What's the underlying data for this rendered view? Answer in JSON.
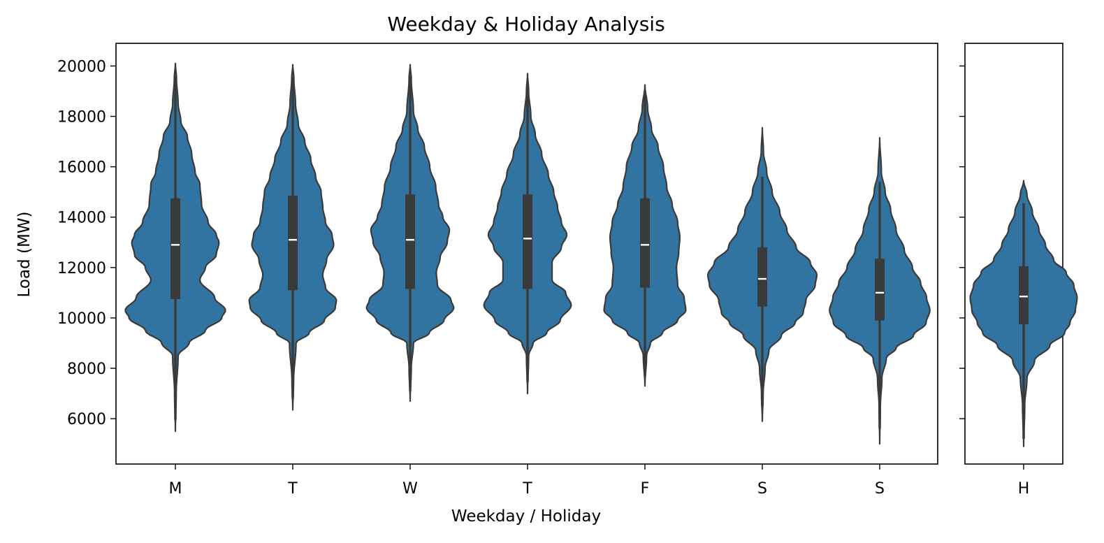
{
  "chart_data": {
    "type": "violin",
    "title": "Weekday & Holiday Analysis",
    "xlabel": "Weekday / Holiday",
    "ylabel": "Load (MW)",
    "ylim": [
      4200,
      20900
    ],
    "yticks": [
      6000,
      8000,
      10000,
      12000,
      14000,
      16000,
      18000,
      20000
    ],
    "grid": false,
    "colors": {
      "fill": "#3274a1",
      "edge": "#3a3a3a",
      "median": "#ffffff"
    },
    "panels": [
      {
        "categories": [
          "M",
          "T",
          "W",
          "T",
          "F",
          "S",
          "S"
        ],
        "violins": [
          {
            "label": "M",
            "min": 5500,
            "max": 20100,
            "q1": 10750,
            "median": 12900,
            "q3": 14750,
            "whisker_low": 5950,
            "whisker_high": 19600,
            "profile": [
              [
                5500,
                0.0
              ],
              [
                7000,
                0.015
              ],
              [
                8500,
                0.05
              ],
              [
                9000,
                0.25
              ],
              [
                9500,
                0.55
              ],
              [
                10000,
                0.85
              ],
              [
                10300,
                0.92
              ],
              [
                10800,
                0.72
              ],
              [
                11500,
                0.45
              ],
              [
                12000,
                0.55
              ],
              [
                12500,
                0.75
              ],
              [
                13000,
                0.8
              ],
              [
                13300,
                0.75
              ],
              [
                13800,
                0.6
              ],
              [
                14500,
                0.48
              ],
              [
                15300,
                0.45
              ],
              [
                15800,
                0.36
              ],
              [
                16500,
                0.3
              ],
              [
                17200,
                0.22
              ],
              [
                17800,
                0.1
              ],
              [
                18500,
                0.05
              ],
              [
                19500,
                0.02
              ],
              [
                20100,
                0.0
              ]
            ]
          },
          {
            "label": "T",
            "min": 6350,
            "max": 20050,
            "q1": 11100,
            "median": 13100,
            "q3": 14850,
            "whisker_low": 6800,
            "whisker_high": 19550,
            "profile": [
              [
                6350,
                0.0
              ],
              [
                7500,
                0.015
              ],
              [
                9000,
                0.06
              ],
              [
                9400,
                0.3
              ],
              [
                9900,
                0.58
              ],
              [
                10400,
                0.78
              ],
              [
                10700,
                0.8
              ],
              [
                11200,
                0.6
              ],
              [
                11700,
                0.55
              ],
              [
                12300,
                0.62
              ],
              [
                12900,
                0.75
              ],
              [
                13300,
                0.72
              ],
              [
                13800,
                0.6
              ],
              [
                14400,
                0.55
              ],
              [
                15000,
                0.52
              ],
              [
                15600,
                0.42
              ],
              [
                16300,
                0.33
              ],
              [
                17000,
                0.22
              ],
              [
                17700,
                0.1
              ],
              [
                18500,
                0.05
              ],
              [
                19500,
                0.02
              ],
              [
                20050,
                0.0
              ]
            ]
          },
          {
            "label": "W",
            "min": 6700,
            "max": 20050,
            "q1": 11150,
            "median": 13100,
            "q3": 14900,
            "whisker_low": 7100,
            "whisker_high": 19600,
            "profile": [
              [
                6700,
                0.0
              ],
              [
                8000,
                0.02
              ],
              [
                9000,
                0.06
              ],
              [
                9400,
                0.35
              ],
              [
                9900,
                0.62
              ],
              [
                10400,
                0.8
              ],
              [
                10700,
                0.75
              ],
              [
                11300,
                0.5
              ],
              [
                11800,
                0.48
              ],
              [
                12400,
                0.55
              ],
              [
                13000,
                0.68
              ],
              [
                13500,
                0.72
              ],
              [
                14000,
                0.6
              ],
              [
                14500,
                0.52
              ],
              [
                15200,
                0.47
              ],
              [
                16000,
                0.36
              ],
              [
                16800,
                0.26
              ],
              [
                17500,
                0.14
              ],
              [
                18200,
                0.06
              ],
              [
                19500,
                0.02
              ],
              [
                20050,
                0.0
              ]
            ]
          },
          {
            "label": "T",
            "min": 7000,
            "max": 19700,
            "q1": 11150,
            "median": 13150,
            "q3": 14900,
            "whisker_low": 7450,
            "whisker_high": 19250,
            "profile": [
              [
                7000,
                0.0
              ],
              [
                8500,
                0.02
              ],
              [
                9000,
                0.1
              ],
              [
                9400,
                0.35
              ],
              [
                9900,
                0.6
              ],
              [
                10500,
                0.8
              ],
              [
                11000,
                0.7
              ],
              [
                11500,
                0.45
              ],
              [
                12200,
                0.45
              ],
              [
                12800,
                0.62
              ],
              [
                13300,
                0.72
              ],
              [
                13800,
                0.62
              ],
              [
                14400,
                0.55
              ],
              [
                15000,
                0.48
              ],
              [
                15700,
                0.38
              ],
              [
                16500,
                0.26
              ],
              [
                17300,
                0.14
              ],
              [
                18000,
                0.06
              ],
              [
                19000,
                0.02
              ],
              [
                19700,
                0.0
              ]
            ]
          },
          {
            "label": "F",
            "min": 7300,
            "max": 19250,
            "q1": 11200,
            "median": 12900,
            "q3": 14750,
            "whisker_low": 7700,
            "whisker_high": 18850,
            "profile": [
              [
                7300,
                0.0
              ],
              [
                8500,
                0.03
              ],
              [
                9000,
                0.1
              ],
              [
                9400,
                0.32
              ],
              [
                9900,
                0.6
              ],
              [
                10300,
                0.75
              ],
              [
                10800,
                0.72
              ],
              [
                11300,
                0.6
              ],
              [
                12000,
                0.58
              ],
              [
                12600,
                0.62
              ],
              [
                13200,
                0.64
              ],
              [
                13800,
                0.6
              ],
              [
                14500,
                0.5
              ],
              [
                15200,
                0.4
              ],
              [
                16000,
                0.34
              ],
              [
                16800,
                0.24
              ],
              [
                17500,
                0.12
              ],
              [
                18300,
                0.05
              ],
              [
                19250,
                0.0
              ]
            ]
          },
          {
            "label": "S",
            "min": 5900,
            "max": 17550,
            "q1": 10450,
            "median": 11550,
            "q3": 12800,
            "whisker_low": 6500,
            "whisker_high": 15600,
            "profile": [
              [
                5900,
                0.0
              ],
              [
                7000,
                0.015
              ],
              [
                8000,
                0.05
              ],
              [
                8700,
                0.12
              ],
              [
                9300,
                0.35
              ],
              [
                9800,
                0.6
              ],
              [
                10200,
                0.75
              ],
              [
                10700,
                0.8
              ],
              [
                11300,
                0.97
              ],
              [
                11700,
                1.0
              ],
              [
                12200,
                0.88
              ],
              [
                12800,
                0.62
              ],
              [
                13500,
                0.45
              ],
              [
                14200,
                0.32
              ],
              [
                15000,
                0.18
              ],
              [
                15800,
                0.08
              ],
              [
                16600,
                0.02
              ],
              [
                17550,
                0.0
              ]
            ]
          },
          {
            "label": "S",
            "min": 5000,
            "max": 17150,
            "q1": 9900,
            "median": 11000,
            "q3": 12350,
            "whisker_low": 5600,
            "whisker_high": 15400,
            "profile": [
              [
                5000,
                0.0
              ],
              [
                6500,
                0.012
              ],
              [
                7600,
                0.04
              ],
              [
                8400,
                0.12
              ],
              [
                8800,
                0.3
              ],
              [
                9300,
                0.62
              ],
              [
                9800,
                0.85
              ],
              [
                10300,
                0.92
              ],
              [
                10800,
                0.86
              ],
              [
                11400,
                0.75
              ],
              [
                12000,
                0.6
              ],
              [
                12700,
                0.45
              ],
              [
                13500,
                0.3
              ],
              [
                14300,
                0.2
              ],
              [
                15000,
                0.1
              ],
              [
                15800,
                0.03
              ],
              [
                17150,
                0.0
              ]
            ]
          }
        ]
      },
      {
        "categories": [
          "H"
        ],
        "violins": [
          {
            "label": "H",
            "min": 4900,
            "max": 15450,
            "q1": 9750,
            "median": 10850,
            "q3": 12050,
            "whisker_low": 5200,
            "whisker_high": 14550,
            "profile": [
              [
                4900,
                0.0
              ],
              [
                6500,
                0.02
              ],
              [
                7600,
                0.06
              ],
              [
                8300,
                0.2
              ],
              [
                8900,
                0.48
              ],
              [
                9400,
                0.75
              ],
              [
                9800,
                0.85
              ],
              [
                10300,
                0.95
              ],
              [
                10800,
                0.98
              ],
              [
                11300,
                0.92
              ],
              [
                11800,
                0.78
              ],
              [
                12300,
                0.55
              ],
              [
                12900,
                0.4
              ],
              [
                13500,
                0.28
              ],
              [
                14200,
                0.16
              ],
              [
                14900,
                0.06
              ],
              [
                15450,
                0.0
              ]
            ]
          }
        ]
      }
    ]
  }
}
